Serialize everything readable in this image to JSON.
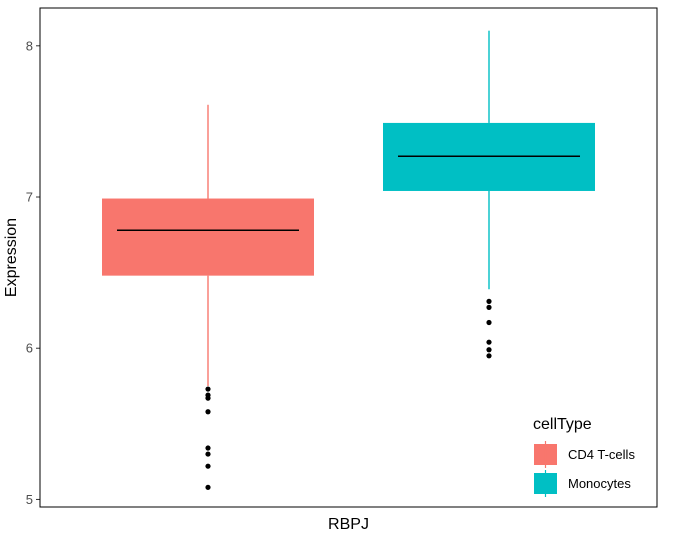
{
  "chart_data": {
    "type": "boxplot",
    "xlabel": "RBPJ",
    "ylabel": "Expression",
    "ylim": [
      4.95,
      8.25
    ],
    "yticks": [
      5,
      6,
      7,
      8
    ],
    "grid": false,
    "legend": {
      "title": "cellType",
      "placement": "bottom-right inside"
    },
    "series": [
      {
        "name": "CD4 T-cells",
        "color": "#F8766D",
        "q1": 6.48,
        "median": 6.78,
        "q3": 6.99,
        "whisker_low": 5.75,
        "whisker_high": 7.61,
        "outliers": [
          5.73,
          5.69,
          5.67,
          5.58,
          5.34,
          5.3,
          5.22,
          5.08
        ]
      },
      {
        "name": "Monocytes",
        "color": "#00BFC4",
        "q1": 7.04,
        "median": 7.27,
        "q3": 7.49,
        "whisker_low": 6.39,
        "whisker_high": 8.1,
        "outliers": [
          6.31,
          6.27,
          6.17,
          6.04,
          5.99,
          5.95
        ]
      }
    ]
  }
}
